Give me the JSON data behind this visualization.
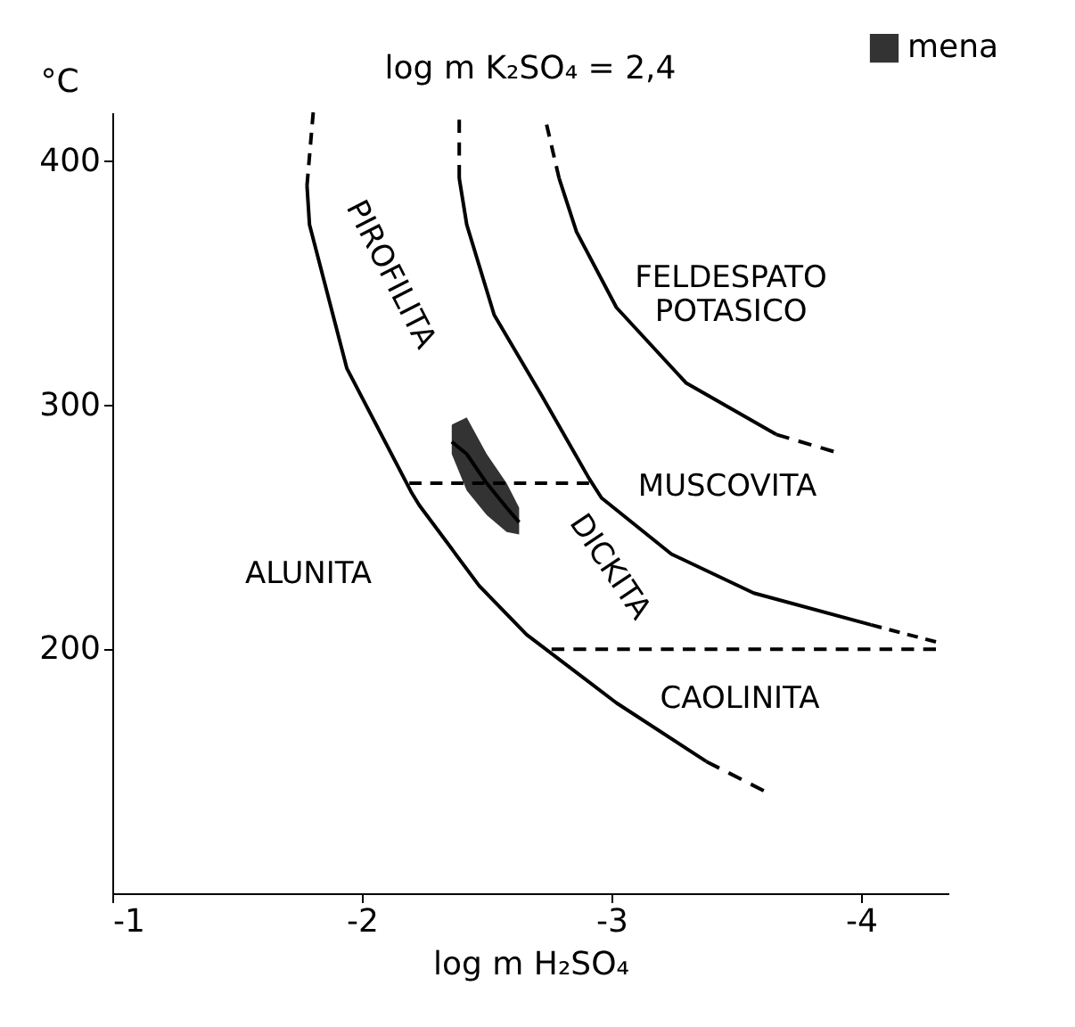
{
  "chart_data": {
    "type": "line",
    "title": "log m K₂SO₄ = 2,4",
    "xlabel": "log m H₂SO₄",
    "ylabel": "°C",
    "xlim": [
      -1,
      -4.35
    ],
    "ylim": [
      100,
      420
    ],
    "xticks": [
      -1,
      -2,
      -3,
      -4
    ],
    "yticks": [
      200,
      300,
      400
    ],
    "grid": false,
    "legend": "top right",
    "series": [
      {
        "color": "#000000",
        "line_style": "dashed",
        "x": [
          -1.805,
          -1.78
        ],
        "values": [
          420,
          390
        ]
      },
      {
        "color": "#000000",
        "line_style": "solid",
        "x": [
          -1.78,
          -1.79,
          -1.94,
          -2.2,
          -2.23,
          -2.47,
          -2.66,
          -3.02,
          -3.38
        ],
        "values": [
          390,
          374,
          315,
          264,
          259,
          226,
          206,
          178,
          154
        ]
      },
      {
        "color": "#000000",
        "line_style": "dashed",
        "x": [
          -3.38,
          -3.61
        ],
        "values": [
          154,
          142
        ]
      },
      {
        "color": "#000000",
        "line_style": "dashed",
        "x": [
          -2.39,
          -2.39
        ],
        "values": [
          417,
          393
        ]
      },
      {
        "color": "#000000",
        "line_style": "solid",
        "x": [
          -2.39,
          -2.42,
          -2.53,
          -2.72,
          -2.91,
          -2.96,
          -3.24,
          -3.57,
          -4.04
        ],
        "values": [
          393,
          374,
          337,
          304,
          270,
          262,
          239,
          223,
          210
        ]
      },
      {
        "color": "#000000",
        "line_style": "dashed",
        "x": [
          -4.04,
          -4.3
        ],
        "values": [
          210,
          203
        ]
      },
      {
        "color": "#000000",
        "line_style": "dashed",
        "x": [
          -2.74,
          -2.79
        ],
        "values": [
          415,
          393
        ]
      },
      {
        "color": "#000000",
        "line_style": "solid",
        "x": [
          -2.79,
          -2.86,
          -3.02,
          -3.3,
          -3.66
        ],
        "values": [
          393,
          371,
          340,
          309,
          288
        ]
      },
      {
        "color": "#000000",
        "line_style": "dashed",
        "x": [
          -3.66,
          -3.89
        ],
        "values": [
          288,
          281
        ]
      },
      {
        "color": "#000000",
        "line_style": "dashed",
        "x": [
          -2.19,
          -2.91
        ],
        "values": [
          268,
          268
        ]
      },
      {
        "color": "#000000",
        "line_style": "dashed",
        "x": [
          -2.76,
          -4.3
        ],
        "values": [
          200,
          200
        ]
      },
      {
        "name": "mena",
        "type": "line",
        "color": "#000000",
        "x": [
          -2.36,
          -2.42,
          -2.5,
          -2.58,
          -2.63
        ],
        "values": [
          285,
          280,
          268,
          258,
          252
        ],
        "lower": [
          280,
          265,
          255,
          248,
          247
        ],
        "upper": [
          292,
          295,
          280,
          268,
          258
        ]
      }
    ],
    "annotations": [
      "ALUNITA",
      "PIROFILITA",
      "FELDESPATO\nPOTASICO",
      "MUSCOVITA",
      "DICKITA",
      "CAOLINITA"
    ]
  }
}
